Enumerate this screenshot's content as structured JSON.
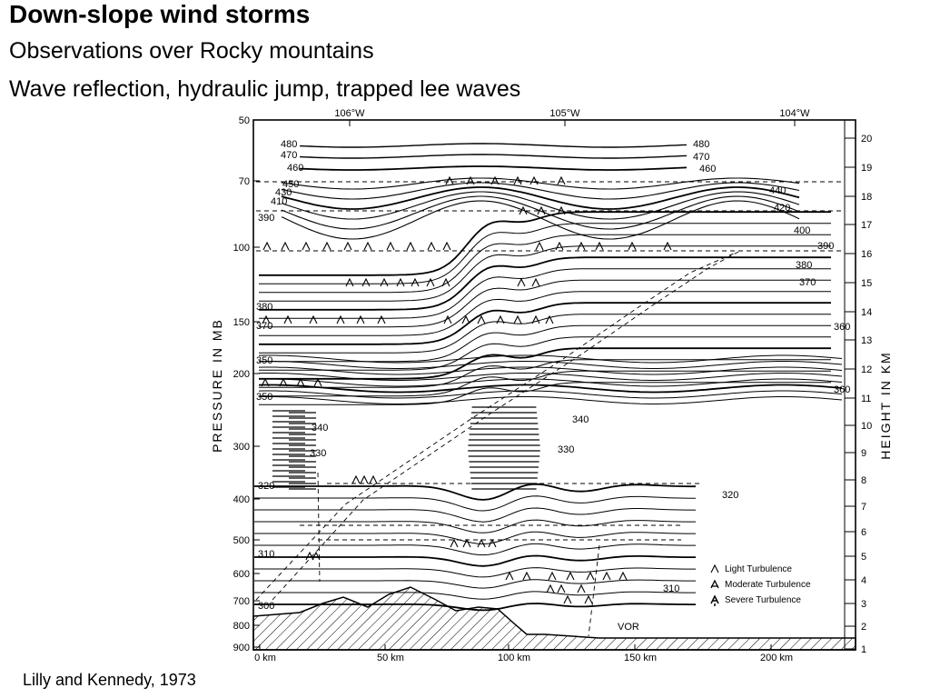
{
  "slide": {
    "title": "Down-slope wind storms",
    "subtitle1": "Observations over Rocky mountains",
    "subtitle2": "Wave reflection, hydraulic jump, trapped lee waves",
    "citation": "Lilly and Kennedy, 1973"
  },
  "figure": {
    "left_axis_label": "PRESSURE IN MB",
    "right_axis_label": "HEIGHT IN KM",
    "pressure_ticks": [
      "50",
      "70",
      "100",
      "150",
      "200",
      "300",
      "400",
      "500",
      "600",
      "700",
      "800",
      "900"
    ],
    "height_ticks": [
      "20",
      "19",
      "18",
      "17",
      "16",
      "15",
      "14",
      "13",
      "12",
      "11",
      "10",
      "9",
      "8",
      "7",
      "6",
      "5",
      "4",
      "3",
      "2",
      "1"
    ],
    "longitude_labels": [
      "106°W",
      "105°W",
      "104°W"
    ],
    "distance_labels": [
      "0 km",
      "50 km",
      "100 km",
      "150 km",
      "200 km"
    ],
    "vor_label": "VOR",
    "legend": {
      "light": "Light Turbulence",
      "moderate": "Moderate Turbulence",
      "severe": "Severe Turbulence"
    },
    "isentrope_labels": [
      "480",
      "470",
      "460",
      "450",
      "430",
      "410",
      "390",
      "480",
      "470",
      "460",
      "440",
      "420",
      "400",
      "390",
      "380",
      "370",
      "380",
      "370",
      "360",
      "350",
      "360",
      "350",
      "340",
      "330",
      "340",
      "330",
      "320",
      "320",
      "310",
      "310",
      "300"
    ]
  }
}
